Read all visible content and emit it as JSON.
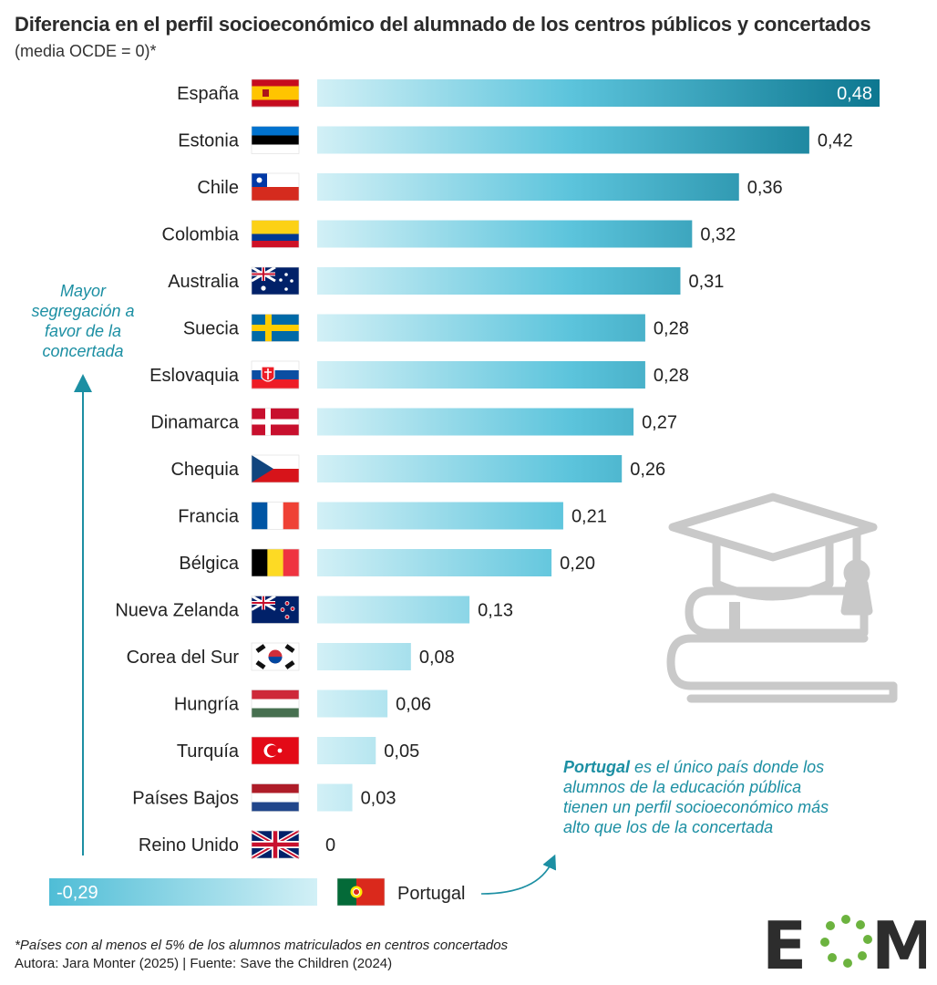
{
  "header": {
    "title": "Diferencia en el perfil socioeconómico del alumnado de los centros públicos y concertados",
    "subtitle": "(media OCDE = 0)*"
  },
  "annotations": {
    "left_note": "Mayor segregación a favor de la concertada",
    "portugal_note_bold": "Portugal",
    "portugal_note_rest": " es el único país donde los alumnos de la educación pública tienen un perfil socioeconómico más alto que los de la concertada"
  },
  "footer": {
    "footnote": "*Países con al menos el 5% de los alumnos matriculados en centros concertados",
    "credits": "Autora: Jara Monter (2025) | Fuente: Save the Children (2024)"
  },
  "logo": {
    "text": "EOM"
  },
  "colors": {
    "bar_light": "#cdeff5",
    "bar_dark": "#0e7990",
    "accent": "#1c8fa3",
    "text": "#222222"
  },
  "chart_data": {
    "type": "bar",
    "orientation": "horizontal",
    "xlim": [
      -0.29,
      0.48
    ],
    "categories": [
      "España",
      "Estonia",
      "Chile",
      "Colombia",
      "Australia",
      "Suecia",
      "Eslovaquia",
      "Dinamarca",
      "Chequia",
      "Francia",
      "Bélgica",
      "Nueva Zelanda",
      "Corea del Sur",
      "Hungría",
      "Turquía",
      "Países Bajos",
      "Reino Unido",
      "Portugal"
    ],
    "values": [
      0.48,
      0.42,
      0.36,
      0.32,
      0.31,
      0.28,
      0.28,
      0.27,
      0.26,
      0.21,
      0.2,
      0.13,
      0.08,
      0.06,
      0.05,
      0.03,
      0,
      -0.29
    ],
    "value_labels": [
      "0,48",
      "0,42",
      "0,36",
      "0,32",
      "0,31",
      "0,28",
      "0,28",
      "0,27",
      "0,26",
      "0,21",
      "0,20",
      "0,13",
      "0,08",
      "0,06",
      "0,05",
      "0,03",
      "0",
      "-0,29"
    ],
    "flags": [
      "spain-flag",
      "estonia-flag",
      "chile-flag",
      "colombia-flag",
      "australia-flag",
      "sweden-flag",
      "slovakia-flag",
      "denmark-flag",
      "czechia-flag",
      "france-flag",
      "belgium-flag",
      "new-zealand-flag",
      "south-korea-flag",
      "hungary-flag",
      "turkey-flag",
      "netherlands-flag",
      "uk-flag",
      "portugal-flag"
    ]
  }
}
